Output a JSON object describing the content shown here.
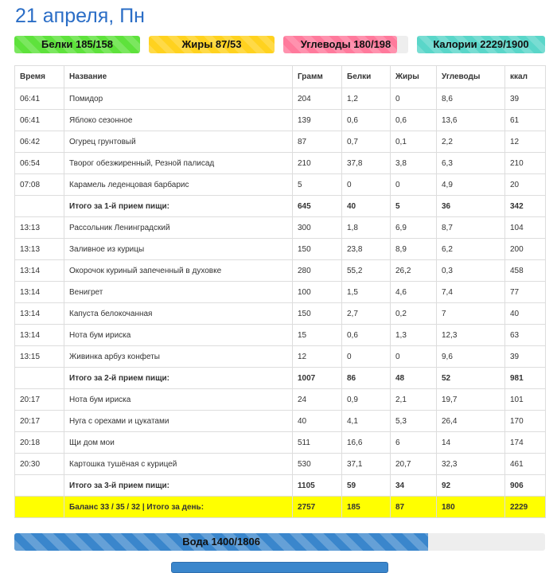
{
  "header": {
    "date": "21 апреля, Пн"
  },
  "macros": [
    {
      "key": "protein",
      "label": "Белки 185/158",
      "fill_fraction": 1.0,
      "color": "#5ee23c"
    },
    {
      "key": "fat",
      "label": "Жиры 87/53",
      "fill_fraction": 1.0,
      "color": "#ffd21f"
    },
    {
      "key": "carbs",
      "label": "Углеводы 180/198",
      "fill_fraction": 0.91,
      "color": "#ff7a9c"
    },
    {
      "key": "calories",
      "label": "Калории 2229/1900",
      "fill_fraction": 1.0,
      "color": "#5ad6c9"
    }
  ],
  "table": {
    "headers": [
      "Время",
      "Название",
      "Грамм",
      "Белки",
      "Жиры",
      "Углеводы",
      "ккал"
    ],
    "rows": [
      {
        "type": "item",
        "cells": [
          "06:41",
          "Помидор",
          "204",
          "1,2",
          "0",
          "8,6",
          "39"
        ]
      },
      {
        "type": "item",
        "cells": [
          "06:41",
          "Яблоко сезонное",
          "139",
          "0,6",
          "0,6",
          "13,6",
          "61"
        ]
      },
      {
        "type": "item",
        "cells": [
          "06:42",
          "Огурец грунтовый",
          "87",
          "0,7",
          "0,1",
          "2,2",
          "12"
        ]
      },
      {
        "type": "item",
        "cells": [
          "06:54",
          "Творог обезжиренный, Резной палисад",
          "210",
          "37,8",
          "3,8",
          "6,3",
          "210"
        ]
      },
      {
        "type": "item",
        "cells": [
          "07:08",
          "Карамель леденцовая барбарис",
          "5",
          "0",
          "0",
          "4,9",
          "20"
        ]
      },
      {
        "type": "total",
        "cells": [
          "",
          "Итого за 1-й прием пищи:",
          "645",
          "40",
          "5",
          "36",
          "342"
        ]
      },
      {
        "type": "item",
        "cells": [
          "13:13",
          "Рассольник Ленинградский",
          "300",
          "1,8",
          "6,9",
          "8,7",
          "104"
        ]
      },
      {
        "type": "item",
        "cells": [
          "13:13",
          "Заливное из курицы",
          "150",
          "23,8",
          "8,9",
          "6,2",
          "200"
        ]
      },
      {
        "type": "item",
        "cells": [
          "13:14",
          "Окорочок куриный запеченный в духовке",
          "280",
          "55,2",
          "26,2",
          "0,3",
          "458"
        ]
      },
      {
        "type": "item",
        "cells": [
          "13:14",
          "Венигрет",
          "100",
          "1,5",
          "4,6",
          "7,4",
          "77"
        ]
      },
      {
        "type": "item",
        "cells": [
          "13:14",
          "Капуста белокочанная",
          "150",
          "2,7",
          "0,2",
          "7",
          "40"
        ]
      },
      {
        "type": "item",
        "cells": [
          "13:14",
          "Нота бум ириска",
          "15",
          "0,6",
          "1,3",
          "12,3",
          "63"
        ]
      },
      {
        "type": "item",
        "cells": [
          "13:15",
          "Живинка арбуз конфеты",
          "12",
          "0",
          "0",
          "9,6",
          "39"
        ]
      },
      {
        "type": "total",
        "cells": [
          "",
          "Итого за 2-й прием пищи:",
          "1007",
          "86",
          "48",
          "52",
          "981"
        ]
      },
      {
        "type": "item",
        "cells": [
          "20:17",
          "Нота бум ириска",
          "24",
          "0,9",
          "2,1",
          "19,7",
          "101"
        ]
      },
      {
        "type": "item",
        "cells": [
          "20:17",
          "Нуга с орехами и цукатами",
          "40",
          "4,1",
          "5,3",
          "26,4",
          "170"
        ]
      },
      {
        "type": "item",
        "cells": [
          "20:18",
          "Щи дом мои",
          "511",
          "16,6",
          "6",
          "14",
          "174"
        ]
      },
      {
        "type": "item",
        "cells": [
          "20:30",
          "Картошка тушёная с курицей",
          "530",
          "37,1",
          "20,7",
          "32,3",
          "461"
        ]
      },
      {
        "type": "total",
        "cells": [
          "",
          "Итого за 3-й прием пищи:",
          "1105",
          "59",
          "34",
          "92",
          "906"
        ]
      },
      {
        "type": "grand",
        "cells": [
          "",
          "Баланс 33 / 35 / 32 | Итого за день:",
          "2757",
          "185",
          "87",
          "180",
          "2229"
        ]
      }
    ]
  },
  "water": {
    "label": "Вода 1400/1806",
    "fill_fraction": 0.78,
    "color": "#3a86cc"
  }
}
